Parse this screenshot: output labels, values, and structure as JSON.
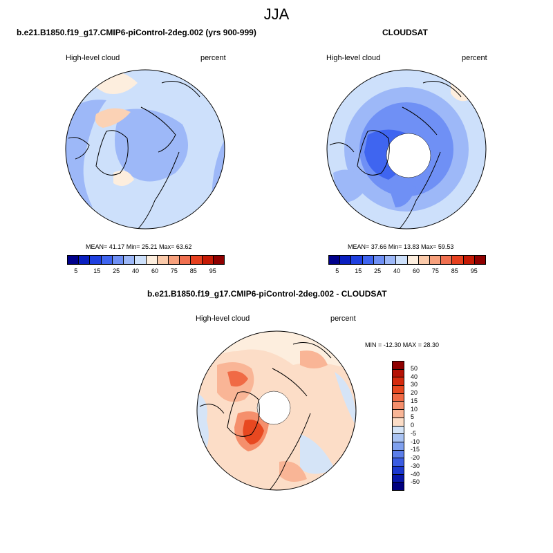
{
  "season": "JJA",
  "panel1": {
    "title": "b.e21.B1850.f19_g17.CMIP6-piControl-2deg.002 (yrs 900-999)",
    "variable": "High-level cloud",
    "units": "percent",
    "stats": "MEAN=  41.17  Min=  25.21  Max=  63.62"
  },
  "panel2": {
    "title": "CLOUDSAT",
    "variable": "High-level cloud",
    "units": "percent",
    "stats": "MEAN=  37.66  Min=  13.83  Max=  59.53"
  },
  "panel3": {
    "title": "b.e21.B1850.f19_g17.CMIP6-piControl-2deg.002 - CLOUDSAT",
    "variable": "High-level cloud",
    "units": "percent",
    "stats": "MIN = -12.30 MAX =  28.30"
  },
  "colorbar_top": {
    "colors": [
      "#00008b",
      "#0a1fc0",
      "#1f40e0",
      "#3f65f0",
      "#6f90f5",
      "#9db8f8",
      "#cde0fb",
      "#fdeede",
      "#fbcaaa",
      "#f7a07c",
      "#f07050",
      "#e6401f",
      "#c51a05",
      "#8f0000"
    ],
    "ticks": [
      "5",
      "15",
      "25",
      "40",
      "60",
      "75",
      "85",
      "95"
    ]
  },
  "colorbar_diff": {
    "colors": [
      "#8f0000",
      "#b51205",
      "#d52a0d",
      "#e84820",
      "#f06a45",
      "#f58f6c",
      "#f9b596",
      "#fcddc7",
      "#d5e4f7",
      "#a9c3f3",
      "#7fa0ee",
      "#5c7eea",
      "#3a5ce2",
      "#1b38cf",
      "#0817aa",
      "#00007f"
    ],
    "ticks": [
      "50",
      "40",
      "30",
      "20",
      "15",
      "10",
      "5",
      "0",
      "-5",
      "-10",
      "-15",
      "-20",
      "-30",
      "-40",
      "-50"
    ]
  }
}
